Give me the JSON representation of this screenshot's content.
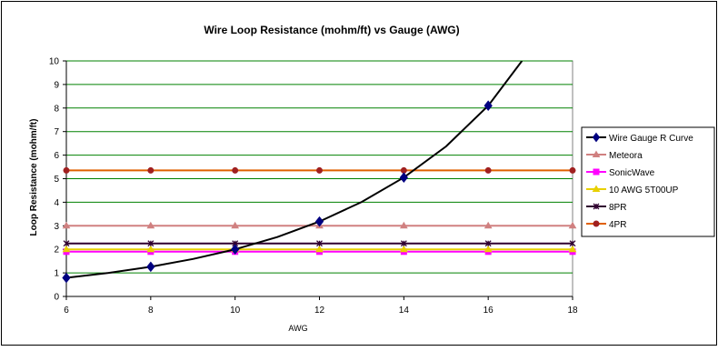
{
  "chart_data": {
    "type": "line",
    "title": "Wire Loop Resistance (mohm/ft) vs Gauge (AWG)",
    "xlabel": "AWG",
    "ylabel": "Loop Resistance (mohm/ft)",
    "xlim": [
      6,
      18
    ],
    "ylim": [
      0,
      10
    ],
    "x_ticks": [
      6,
      8,
      10,
      12,
      14,
      16,
      18
    ],
    "y_ticks": [
      0,
      1,
      2,
      3,
      4,
      5,
      6,
      7,
      8,
      9,
      10
    ],
    "grid": "horizontal",
    "legend_position": "right",
    "plot_background": "#ffffff",
    "grid_color": "#008000",
    "x": [
      6,
      8,
      10,
      12,
      14,
      16,
      18
    ],
    "series": [
      {
        "name": "Wire Gauge R Curve",
        "color": "#000080",
        "line_color": "#000000",
        "marker": "diamond",
        "x": [
          6,
          8,
          10,
          12,
          14,
          16
        ],
        "y": [
          0.79,
          1.26,
          2.0,
          3.18,
          5.05,
          8.1
        ],
        "curve": {
          "x": [
            6,
            7,
            8,
            9,
            10,
            11,
            12,
            13,
            14,
            15,
            16,
            16.8
          ],
          "y": [
            0.79,
            1.0,
            1.26,
            1.59,
            2.0,
            2.52,
            3.18,
            4.01,
            5.05,
            6.37,
            8.1,
            10.0
          ]
        }
      },
      {
        "name": "Meteora",
        "color": "#d08080",
        "marker": "triangle",
        "y": [
          3.0,
          3.0,
          3.0,
          3.0,
          3.0,
          3.0,
          3.0
        ]
      },
      {
        "name": "SonicWave",
        "color": "#ff00ff",
        "marker": "square",
        "y": [
          1.9,
          1.9,
          1.9,
          1.9,
          1.9,
          1.9,
          1.9
        ]
      },
      {
        "name": "10 AWG 5T00UP",
        "color": "#e8d000",
        "marker": "triangle",
        "y": [
          2.0,
          2.0,
          2.0,
          2.0,
          2.0,
          2.0,
          2.0
        ]
      },
      {
        "name": "8PR",
        "color": "#300030",
        "marker": "x",
        "y": [
          2.25,
          2.25,
          2.25,
          2.25,
          2.25,
          2.25,
          2.25
        ]
      },
      {
        "name": "4PR",
        "color": "#e06000",
        "marker_color": "#a02020",
        "marker": "circle",
        "y": [
          5.35,
          5.35,
          5.35,
          5.35,
          5.35,
          5.35,
          5.35
        ]
      }
    ]
  }
}
